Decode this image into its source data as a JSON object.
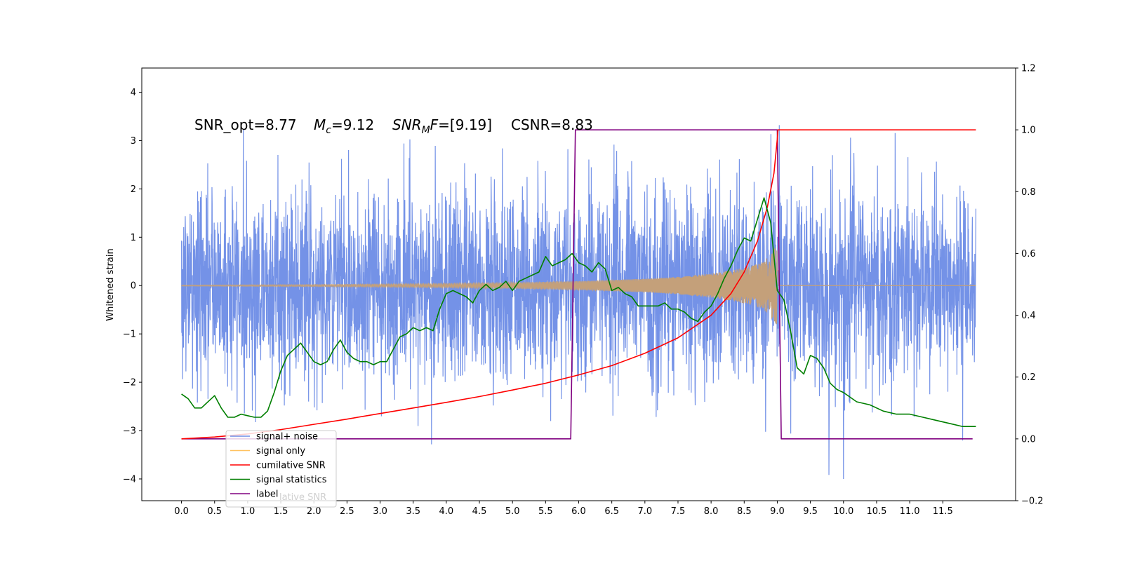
{
  "chart_data": {
    "type": "line",
    "annotation": {
      "snr_opt": "SNR_opt=8.77",
      "mc_var": "M",
      "mc_sub": "c",
      "mc_val": "=9.12",
      "mf_var": "SNR",
      "mf_sub": "M",
      "mf_var2": "F",
      "mf_val": "=[9.19]",
      "csnr": "CSNR=8.83"
    },
    "ylabel_left": "Whitened strain",
    "xlim": [
      -0.6,
      12.6
    ],
    "ylim_left": [
      -4.45,
      4.5
    ],
    "ylim_right": [
      -0.2,
      1.2
    ],
    "xticks": [
      "0.0",
      "0.5",
      "1.0",
      "1.5",
      "2.0",
      "2.5",
      "3.0",
      "3.5",
      "4.0",
      "4.5",
      "5.0",
      "5.5",
      "6.0",
      "6.5",
      "7.0",
      "7.5",
      "8.0",
      "8.5",
      "9.0",
      "9.5",
      "10.0",
      "10.5",
      "11.0",
      "11.5"
    ],
    "yticks_left": [
      "−4",
      "−3",
      "−2",
      "−1",
      "0",
      "1",
      "2",
      "3",
      "4"
    ],
    "yticks_right": [
      "−0.2",
      "0.0",
      "0.2",
      "0.4",
      "0.6",
      "0.8",
      "1.0",
      "1.2"
    ],
    "legend": {
      "placement": "lower-left",
      "entries": [
        {
          "label": "signal+ noise",
          "color": "#6d8ce6"
        },
        {
          "label": "signal only",
          "color": "#ffc15e"
        },
        {
          "label": "cumilative SNR",
          "color": "#ff0000"
        },
        {
          "label": "signal statistics",
          "color": "#007f00"
        },
        {
          "label": "label",
          "color": "#800080"
        }
      ],
      "ghost_text": "lative SNR"
    },
    "series": [
      {
        "name": "signal+ noise",
        "axis": "left",
        "color": "#6d8ce6",
        "description_points": {
          "x_start": 0.0,
          "x_end": 12.0,
          "amplitude_sigma": 1.0
        }
      },
      {
        "name": "signal only",
        "axis": "left",
        "color": "#ffc15e",
        "envelope": {
          "x": [
            0.0,
            2.0,
            4.0,
            5.0,
            6.0,
            7.0,
            7.5,
            8.0,
            8.3,
            8.6,
            8.8,
            8.95,
            9.0
          ],
          "amp": [
            0.01,
            0.02,
            0.04,
            0.06,
            0.09,
            0.14,
            0.18,
            0.25,
            0.31,
            0.4,
            0.5,
            0.75,
            0.9
          ]
        }
      },
      {
        "name": "cumilative SNR",
        "axis": "right",
        "color": "#ff0000",
        "x": [
          0.0,
          0.5,
          1.0,
          1.5,
          2.0,
          2.5,
          3.0,
          3.5,
          4.0,
          4.5,
          5.0,
          5.5,
          6.0,
          6.5,
          7.0,
          7.5,
          8.0,
          8.3,
          8.5,
          8.7,
          8.85,
          8.95,
          9.0,
          9.01,
          12.0
        ],
        "y": [
          0.0,
          0.006,
          0.016,
          0.03,
          0.047,
          0.064,
          0.082,
          0.1,
          0.118,
          0.137,
          0.158,
          0.18,
          0.207,
          0.237,
          0.277,
          0.327,
          0.4,
          0.47,
          0.54,
          0.64,
          0.75,
          0.86,
          0.97,
          1.0,
          1.0
        ]
      },
      {
        "name": "signal statistics",
        "axis": "right",
        "color": "#007f00",
        "x": [
          0.0,
          0.1,
          0.2,
          0.3,
          0.4,
          0.5,
          0.6,
          0.7,
          0.8,
          0.9,
          1.0,
          1.1,
          1.2,
          1.3,
          1.4,
          1.5,
          1.6,
          1.7,
          1.8,
          1.9,
          2.0,
          2.1,
          2.2,
          2.3,
          2.4,
          2.5,
          2.6,
          2.7,
          2.8,
          2.9,
          3.0,
          3.1,
          3.2,
          3.3,
          3.4,
          3.5,
          3.6,
          3.7,
          3.8,
          3.9,
          4.0,
          4.1,
          4.2,
          4.3,
          4.4,
          4.5,
          4.6,
          4.7,
          4.8,
          4.9,
          5.0,
          5.1,
          5.2,
          5.3,
          5.4,
          5.5,
          5.6,
          5.7,
          5.8,
          5.9,
          6.0,
          6.1,
          6.2,
          6.3,
          6.4,
          6.5,
          6.6,
          6.7,
          6.8,
          6.9,
          7.0,
          7.1,
          7.2,
          7.3,
          7.4,
          7.5,
          7.6,
          7.7,
          7.8,
          7.9,
          8.0,
          8.1,
          8.2,
          8.3,
          8.4,
          8.5,
          8.6,
          8.7,
          8.8,
          8.9,
          9.0,
          9.1,
          9.2,
          9.3,
          9.4,
          9.5,
          9.6,
          9.7,
          9.8,
          9.9,
          10.0,
          10.2,
          10.4,
          10.6,
          10.8,
          11.0,
          11.2,
          11.4,
          11.6,
          11.8,
          12.0
        ],
        "y": [
          0.145,
          0.13,
          0.1,
          0.1,
          0.12,
          0.14,
          0.1,
          0.07,
          0.07,
          0.08,
          0.075,
          0.07,
          0.07,
          0.09,
          0.15,
          0.22,
          0.27,
          0.29,
          0.31,
          0.28,
          0.25,
          0.24,
          0.25,
          0.29,
          0.32,
          0.28,
          0.26,
          0.25,
          0.25,
          0.24,
          0.25,
          0.25,
          0.29,
          0.33,
          0.34,
          0.36,
          0.35,
          0.36,
          0.35,
          0.42,
          0.47,
          0.48,
          0.47,
          0.46,
          0.44,
          0.48,
          0.5,
          0.48,
          0.49,
          0.51,
          0.48,
          0.51,
          0.52,
          0.53,
          0.54,
          0.59,
          0.56,
          0.57,
          0.58,
          0.6,
          0.57,
          0.56,
          0.54,
          0.57,
          0.55,
          0.48,
          0.49,
          0.47,
          0.46,
          0.43,
          0.43,
          0.43,
          0.43,
          0.44,
          0.42,
          0.42,
          0.41,
          0.39,
          0.38,
          0.41,
          0.43,
          0.47,
          0.52,
          0.56,
          0.61,
          0.65,
          0.64,
          0.71,
          0.78,
          0.7,
          0.48,
          0.45,
          0.35,
          0.23,
          0.21,
          0.27,
          0.26,
          0.23,
          0.18,
          0.16,
          0.15,
          0.12,
          0.11,
          0.09,
          0.08,
          0.08,
          0.07,
          0.06,
          0.05,
          0.04,
          0.04
        ]
      },
      {
        "name": "label",
        "axis": "right",
        "color": "#800080",
        "x": [
          0.0,
          5.88,
          5.95,
          9.0,
          9.06,
          11.95
        ],
        "y": [
          0.0,
          0.0,
          1.0,
          1.0,
          0.0,
          0.0
        ]
      }
    ]
  }
}
